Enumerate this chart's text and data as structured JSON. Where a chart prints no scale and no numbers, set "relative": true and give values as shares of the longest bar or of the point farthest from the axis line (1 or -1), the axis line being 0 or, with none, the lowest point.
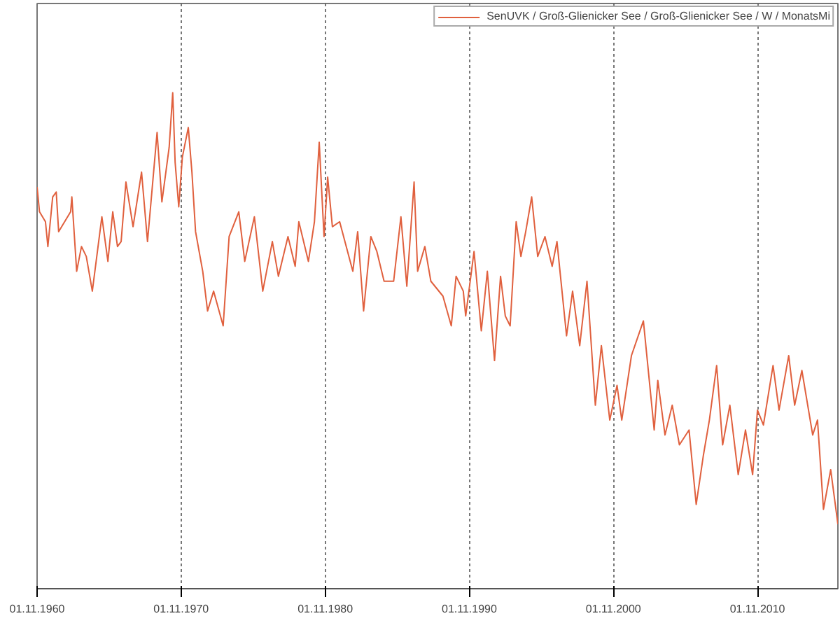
{
  "chart_data": {
    "type": "line",
    "relative": true,
    "grid": "x",
    "legend": "top right",
    "line_style": "solid",
    "marker": "none",
    "xlim": [
      "1960-11-01",
      "2016-06-01"
    ],
    "xticks": [
      {
        "value": "1960-11-01",
        "label": "01.11.1960"
      },
      {
        "value": "1970-11-01",
        "label": "01.11.1970"
      },
      {
        "value": "1980-11-01",
        "label": "01.11.1980"
      },
      {
        "value": "1990-11-01",
        "label": "01.11.1990"
      },
      {
        "value": "2000-11-01",
        "label": "01.11.2000"
      },
      {
        "value": "2010-11-01",
        "label": "01.11.2010"
      }
    ],
    "x": [
      "1960-11",
      "1961-01",
      "1961-06",
      "1961-08",
      "1961-12",
      "1962-03",
      "1962-05",
      "1963-03",
      "1963-04",
      "1963-08",
      "1963-12",
      "1964-04",
      "1964-09",
      "1965-05",
      "1965-10",
      "1966-02",
      "1966-06",
      "1966-09",
      "1967-01",
      "1967-07",
      "1968-02",
      "1968-07",
      "1969-03",
      "1969-07",
      "1970-01",
      "1970-04",
      "1970-06",
      "1970-09",
      "1970-12",
      "1971-05",
      "1971-08",
      "1971-11",
      "1972-05",
      "1972-09",
      "1973-02",
      "1973-10",
      "1974-03",
      "1974-11",
      "1975-04",
      "1975-12",
      "1976-07",
      "1977-03",
      "1977-08",
      "1978-04",
      "1978-10",
      "1979-01",
      "1979-09",
      "1980-02",
      "1980-06",
      "1980-10",
      "1981-01",
      "1981-05",
      "1981-11",
      "1982-10",
      "1983-02",
      "1983-07",
      "1984-01",
      "1984-06",
      "1984-12",
      "1985-08",
      "1986-02",
      "1986-07",
      "1987-01",
      "1987-04",
      "1987-10",
      "1988-03",
      "1989-01",
      "1989-08",
      "1989-12",
      "1990-06",
      "1990-08",
      "1991-03",
      "1991-09",
      "1992-02",
      "1992-08",
      "1993-01",
      "1993-05",
      "1993-09",
      "1994-02",
      "1994-06",
      "1994-10",
      "1995-03",
      "1995-08",
      "1996-02",
      "1996-08",
      "1996-12",
      "1997-08",
      "1998-01",
      "1998-07",
      "1999-01",
      "1999-08",
      "2000-01",
      "2000-08",
      "2001-02",
      "2001-06",
      "2002-02",
      "2002-12",
      "2003-09",
      "2003-12",
      "2004-06",
      "2004-12",
      "2005-06",
      "2006-02",
      "2006-08",
      "2007-02",
      "2007-07",
      "2008-01",
      "2008-06",
      "2008-12",
      "2009-07",
      "2010-01",
      "2010-07",
      "2010-11",
      "2011-04",
      "2011-12",
      "2012-05",
      "2013-01",
      "2013-06",
      "2013-12",
      "2014-09",
      "2015-01",
      "2015-06",
      "2015-12",
      "2016-06"
    ],
    "series": [
      {
        "name": "SenUVK / Groß-Glienicker See / Groß-Glienicker See / W / MonatsMi",
        "color": "#e0603e",
        "values": [
          0.81,
          0.76,
          0.74,
          0.69,
          0.79,
          0.8,
          0.72,
          0.76,
          0.79,
          0.64,
          0.69,
          0.67,
          0.6,
          0.75,
          0.66,
          0.76,
          0.69,
          0.7,
          0.82,
          0.73,
          0.84,
          0.7,
          0.92,
          0.78,
          0.89,
          1.0,
          0.86,
          0.77,
          0.87,
          0.93,
          0.84,
          0.72,
          0.64,
          0.56,
          0.6,
          0.53,
          0.71,
          0.76,
          0.66,
          0.75,
          0.6,
          0.7,
          0.63,
          0.71,
          0.65,
          0.74,
          0.66,
          0.74,
          0.9,
          0.71,
          0.83,
          0.73,
          0.74,
          0.64,
          0.72,
          0.56,
          0.71,
          0.68,
          0.62,
          0.62,
          0.75,
          0.61,
          0.82,
          0.64,
          0.69,
          0.62,
          0.59,
          0.53,
          0.63,
          0.6,
          0.55,
          0.68,
          0.52,
          0.64,
          0.46,
          0.63,
          0.55,
          0.53,
          0.74,
          0.67,
          0.72,
          0.79,
          0.67,
          0.71,
          0.65,
          0.7,
          0.51,
          0.6,
          0.49,
          0.62,
          0.37,
          0.49,
          0.34,
          0.41,
          0.34,
          0.47,
          0.54,
          0.32,
          0.42,
          0.31,
          0.37,
          0.29,
          0.32,
          0.17,
          0.27,
          0.34,
          0.45,
          0.29,
          0.37,
          0.23,
          0.32,
          0.23,
          0.36,
          0.33,
          0.45,
          0.36,
          0.47,
          0.37,
          0.44,
          0.31,
          0.34,
          0.16,
          0.24,
          0.13
        ]
      }
    ]
  }
}
